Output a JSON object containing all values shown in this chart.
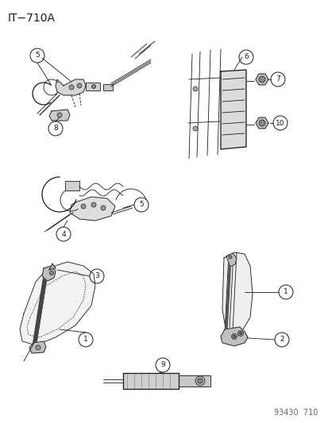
{
  "title": "IT−710A",
  "footer": "93430  710",
  "bg_color": "#ffffff",
  "text_color": "#1a1a1a",
  "title_fontsize": 10,
  "footer_fontsize": 7,
  "dc": "#1a1a1a",
  "lc": "#555555"
}
